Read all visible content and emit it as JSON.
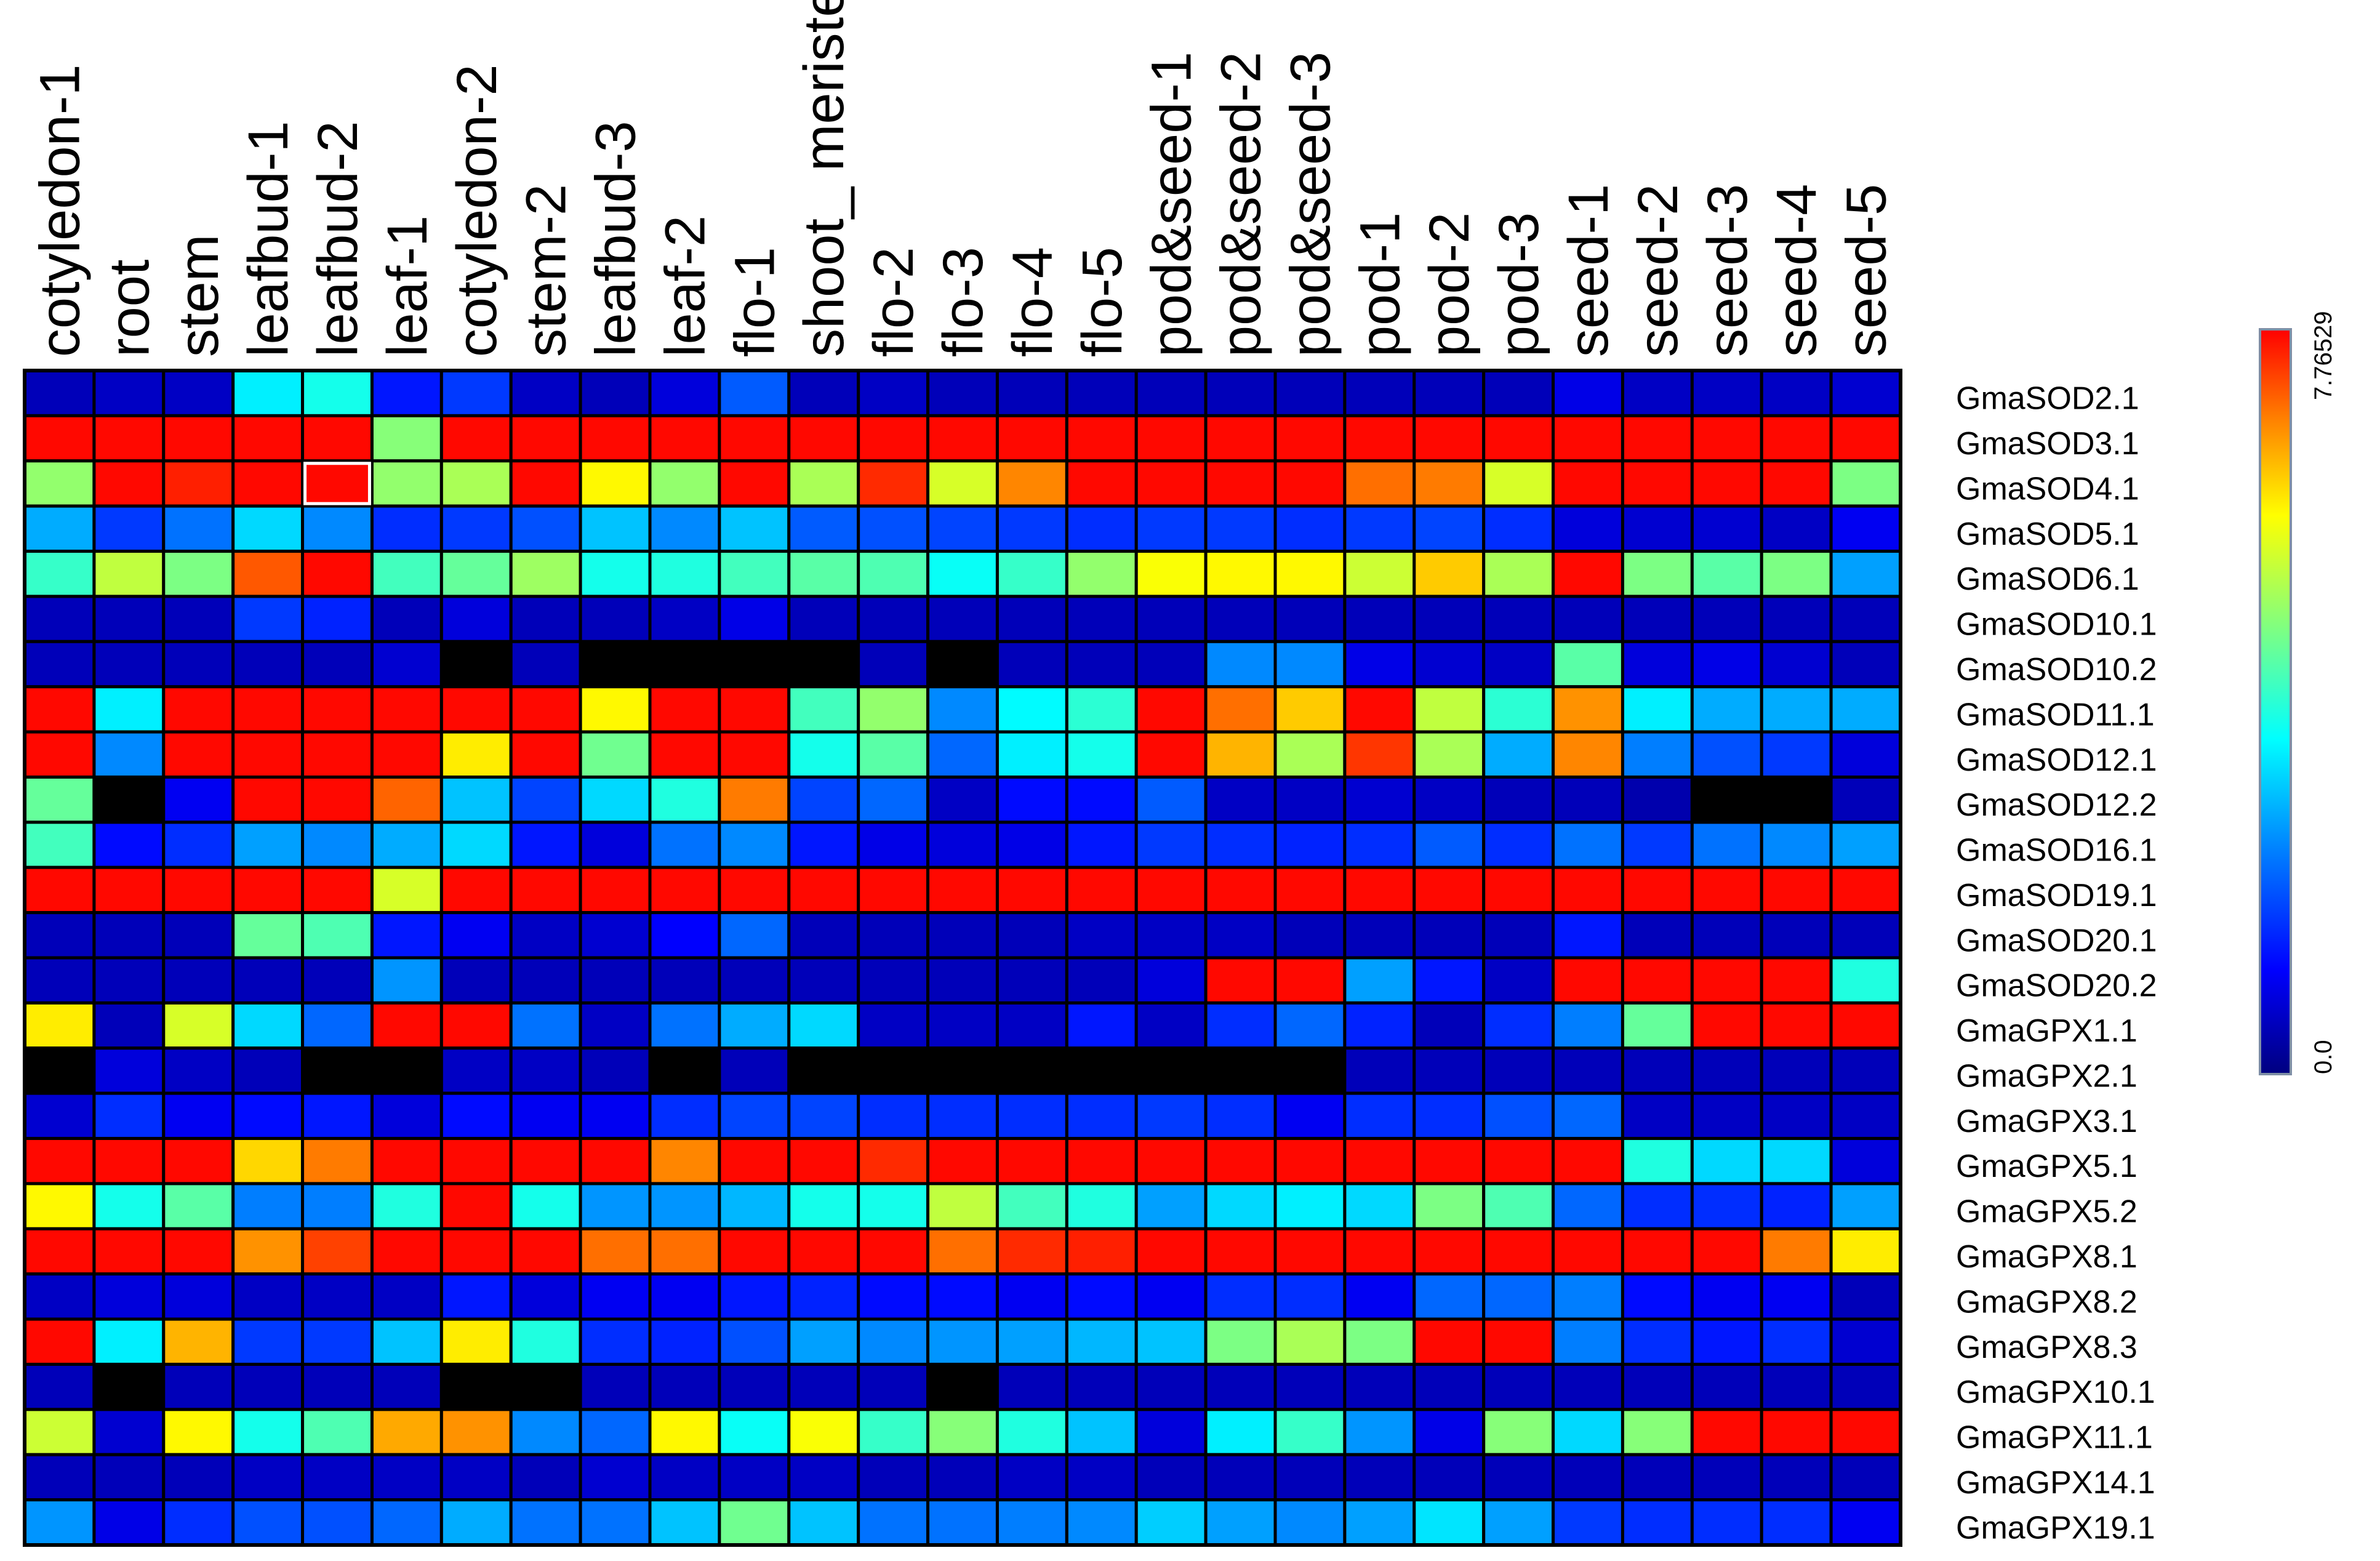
{
  "chart_data": {
    "type": "heatmap",
    "title": "",
    "colormap": [
      "#00007f",
      "#0000ff",
      "#0080ff",
      "#00ffff",
      "#80ff80",
      "#ffff00",
      "#ff8000",
      "#ff0000"
    ],
    "missing_color": "#000000",
    "columns": [
      "cotyledon-1",
      "root",
      "stem",
      "leafbud-1",
      "leafbud-2",
      "leaf-1",
      "cotyledon-2",
      "stem-2",
      "leafbud-3",
      "leaf-2",
      "flo-1",
      "shoot_ meristem",
      "flo-2",
      "flo-3",
      "flo-4",
      "flo-5",
      "pod&seed-1",
      "pod&seed-2",
      "pod&seed-3",
      "pod-1",
      "pod-2",
      "pod-3",
      "seed-1",
      "seed-2",
      "seed-3",
      "seed-4",
      "seed-5"
    ],
    "rows": [
      "GmaSOD2.1",
      "GmaSOD3.1",
      "GmaSOD4.1",
      "GmaSOD5.1",
      "GmaSOD6.1",
      "GmaSOD10.1",
      "GmaSOD10.2",
      "GmaSOD11.1",
      "GmaSOD12.1",
      "GmaSOD12.2",
      "GmaSOD16.1",
      "GmaSOD19.1",
      "GmaSOD20.1",
      "GmaSOD20.2",
      "GmaGPX1.1",
      "GmaGPX2.1",
      "GmaGPX3.1",
      "GmaGPX5.1",
      "GmaGPX5.2",
      "GmaGPX8.1",
      "GmaGPX8.2",
      "GmaGPX8.3",
      "GmaGPX10.1",
      "GmaGPX11.1",
      "GmaGPX14.1",
      "GmaGPX19.1"
    ],
    "values": [
      [
        0.5,
        0.6,
        0.6,
        3.2,
        3.5,
        1.3,
        1.6,
        0.6,
        0.5,
        0.8,
        1.9,
        0.5,
        0.6,
        0.5,
        0.5,
        0.5,
        0.5,
        0.5,
        0.5,
        0.5,
        0.5,
        0.5,
        0.9,
        0.6,
        0.6,
        0.6,
        0.7
      ],
      [
        7.7,
        7.7,
        7.7,
        7.7,
        7.7,
        4.5,
        7.7,
        7.7,
        7.7,
        7.7,
        7.7,
        7.7,
        7.7,
        7.7,
        7.7,
        7.7,
        7.7,
        7.7,
        7.7,
        7.7,
        7.7,
        7.7,
        7.7,
        7.7,
        7.7,
        7.7,
        7.7
      ],
      [
        4.6,
        7.7,
        7.5,
        7.7,
        7.7,
        4.6,
        4.8,
        7.7,
        5.6,
        4.6,
        7.7,
        4.8,
        7.4,
        5.2,
        6.6,
        7.7,
        7.7,
        7.7,
        7.7,
        6.8,
        6.7,
        5.2,
        7.7,
        7.7,
        7.7,
        7.7,
        4.4
      ],
      [
        2.6,
        1.6,
        2.1,
        3.0,
        2.3,
        1.5,
        1.6,
        1.8,
        2.8,
        2.3,
        2.8,
        1.9,
        1.8,
        1.7,
        1.6,
        1.5,
        1.6,
        1.6,
        1.5,
        1.6,
        1.7,
        1.5,
        0.8,
        0.7,
        0.7,
        0.6,
        1.0
      ],
      [
        3.8,
        5.0,
        4.4,
        7.0,
        7.7,
        3.9,
        4.2,
        4.7,
        3.5,
        3.6,
        3.9,
        4.1,
        4.0,
        3.4,
        3.8,
        4.6,
        5.5,
        5.6,
        5.6,
        5.1,
        6.0,
        4.8,
        7.7,
        4.4,
        4.1,
        4.4,
        2.5
      ],
      [
        0.5,
        0.5,
        0.5,
        1.6,
        1.4,
        0.5,
        0.8,
        0.5,
        0.5,
        0.6,
        0.9,
        0.5,
        0.5,
        0.5,
        0.5,
        0.5,
        0.5,
        0.5,
        0.5,
        0.5,
        0.5,
        0.5,
        0.5,
        0.5,
        0.5,
        0.5,
        0.5
      ],
      [
        0.5,
        0.5,
        0.5,
        0.5,
        0.5,
        0.7,
        null,
        0.5,
        null,
        null,
        null,
        null,
        0.5,
        null,
        0.5,
        0.5,
        0.5,
        2.3,
        2.3,
        0.9,
        0.7,
        0.6,
        4.1,
        0.8,
        0.9,
        0.7,
        0.5
      ],
      [
        7.7,
        3.2,
        7.7,
        7.7,
        7.7,
        7.7,
        7.7,
        7.7,
        5.6,
        7.7,
        7.7,
        3.9,
        4.6,
        2.3,
        3.3,
        3.7,
        7.7,
        6.8,
        6.0,
        7.7,
        5.0,
        3.7,
        6.5,
        3.2,
        2.6,
        2.6,
        2.6
      ],
      [
        7.7,
        2.3,
        7.7,
        7.7,
        7.7,
        7.7,
        5.7,
        7.7,
        4.3,
        7.7,
        7.7,
        3.5,
        4.1,
        2.0,
        3.2,
        3.5,
        7.7,
        6.2,
        4.8,
        7.3,
        4.8,
        2.6,
        6.6,
        2.2,
        1.8,
        1.6,
        0.8
      ],
      [
        4.2,
        null,
        1.0,
        7.7,
        7.7,
        6.9,
        2.8,
        1.7,
        3.0,
        3.6,
        6.7,
        1.7,
        2.0,
        0.6,
        1.2,
        1.2,
        1.9,
        0.6,
        0.6,
        0.7,
        0.6,
        0.5,
        0.5,
        0.4,
        null,
        null,
        0.5
      ],
      [
        3.9,
        1.2,
        1.5,
        2.5,
        2.3,
        2.6,
        3.0,
        1.3,
        0.8,
        2.1,
        2.3,
        1.3,
        0.9,
        0.8,
        0.9,
        1.3,
        1.6,
        1.5,
        1.4,
        1.5,
        1.9,
        1.5,
        2.1,
        1.6,
        2.1,
        2.3,
        2.5
      ],
      [
        7.7,
        7.7,
        7.7,
        7.7,
        7.7,
        5.2,
        7.7,
        7.7,
        7.7,
        7.7,
        7.7,
        7.7,
        7.7,
        7.7,
        7.7,
        7.7,
        7.7,
        7.7,
        7.7,
        7.7,
        7.7,
        7.7,
        7.7,
        7.7,
        7.7,
        7.7,
        7.7
      ],
      [
        0.5,
        0.5,
        0.5,
        4.2,
        4.0,
        1.3,
        1.0,
        0.6,
        0.7,
        1.1,
        2.0,
        0.5,
        0.5,
        0.5,
        0.5,
        0.6,
        0.6,
        0.6,
        0.5,
        0.5,
        0.5,
        0.5,
        1.3,
        0.5,
        0.5,
        0.5,
        0.5
      ],
      [
        0.5,
        0.5,
        0.5,
        0.5,
        0.5,
        2.4,
        0.5,
        0.5,
        0.5,
        0.5,
        0.5,
        0.5,
        0.5,
        0.5,
        0.5,
        0.5,
        0.8,
        7.7,
        7.7,
        2.5,
        1.3,
        0.6,
        7.7,
        7.7,
        7.7,
        7.7,
        3.6
      ],
      [
        5.7,
        0.5,
        5.2,
        3.0,
        2.0,
        7.7,
        7.7,
        2.1,
        0.6,
        2.1,
        2.6,
        3.0,
        0.6,
        0.6,
        0.6,
        1.3,
        0.6,
        1.5,
        2.0,
        1.4,
        0.5,
        1.5,
        2.2,
        4.2,
        7.7,
        7.7,
        7.7
      ],
      [
        null,
        0.8,
        0.6,
        0.5,
        null,
        null,
        0.6,
        0.6,
        0.5,
        null,
        0.5,
        null,
        null,
        null,
        null,
        null,
        null,
        null,
        null,
        0.5,
        0.5,
        0.5,
        0.5,
        0.5,
        0.5,
        0.5,
        0.5
      ],
      [
        0.7,
        1.5,
        1.0,
        1.2,
        1.3,
        0.8,
        1.2,
        1.0,
        1.0,
        1.5,
        1.7,
        1.7,
        1.5,
        1.5,
        1.5,
        1.5,
        1.6,
        1.5,
        1.0,
        1.5,
        1.5,
        1.8,
        2.0,
        0.6,
        0.6,
        0.6,
        0.6
      ],
      [
        7.7,
        7.7,
        7.7,
        5.9,
        6.7,
        7.7,
        7.7,
        7.7,
        7.7,
        6.6,
        7.7,
        7.7,
        7.4,
        7.7,
        7.7,
        7.7,
        7.7,
        7.7,
        7.7,
        7.7,
        7.7,
        7.7,
        7.7,
        3.6,
        3.0,
        3.0,
        0.8
      ],
      [
        5.6,
        3.5,
        4.1,
        2.2,
        2.2,
        3.6,
        7.7,
        3.5,
        2.4,
        2.4,
        2.7,
        3.5,
        3.5,
        5.0,
        3.9,
        3.6,
        2.5,
        3.0,
        3.2,
        3.0,
        4.4,
        4.0,
        2.0,
        1.5,
        1.5,
        1.4,
        2.5
      ],
      [
        7.7,
        7.7,
        7.7,
        6.5,
        7.2,
        7.7,
        7.7,
        7.7,
        6.8,
        6.8,
        7.7,
        7.7,
        7.7,
        6.8,
        7.4,
        7.5,
        7.7,
        7.7,
        7.7,
        7.7,
        7.7,
        7.7,
        7.7,
        7.7,
        7.7,
        6.7,
        5.7
      ],
      [
        0.6,
        0.8,
        0.8,
        0.6,
        0.6,
        0.6,
        1.3,
        0.8,
        1.0,
        1.0,
        1.3,
        1.4,
        1.2,
        1.2,
        1.0,
        1.2,
        1.0,
        1.5,
        1.5,
        1.0,
        2.0,
        2.0,
        2.2,
        1.2,
        1.0,
        1.0,
        0.5
      ],
      [
        7.7,
        3.2,
        6.2,
        1.6,
        1.6,
        2.8,
        5.7,
        3.6,
        1.5,
        1.4,
        1.8,
        2.5,
        2.3,
        2.4,
        2.5,
        2.7,
        2.8,
        4.4,
        4.8,
        4.4,
        7.7,
        7.7,
        2.2,
        1.5,
        1.3,
        1.5,
        0.7
      ],
      [
        0.5,
        null,
        0.5,
        0.5,
        0.5,
        0.5,
        null,
        null,
        0.5,
        0.5,
        0.5,
        0.5,
        0.5,
        null,
        0.5,
        0.5,
        0.5,
        0.5,
        0.5,
        0.5,
        0.5,
        0.5,
        0.5,
        0.5,
        0.5,
        0.5,
        0.5
      ],
      [
        5.1,
        0.7,
        5.6,
        3.5,
        4.0,
        6.3,
        6.5,
        2.3,
        2.0,
        5.6,
        3.4,
        5.5,
        3.8,
        4.5,
        3.6,
        2.8,
        0.8,
        3.2,
        3.8,
        2.4,
        0.9,
        4.5,
        3.0,
        4.5,
        7.7,
        7.7,
        7.7
      ],
      [
        0.5,
        0.5,
        0.5,
        0.6,
        0.6,
        0.6,
        0.6,
        0.5,
        0.7,
        0.6,
        0.6,
        0.6,
        0.5,
        0.5,
        0.6,
        0.6,
        0.5,
        0.5,
        0.5,
        0.5,
        0.5,
        0.5,
        0.5,
        0.5,
        0.5,
        0.5,
        0.5
      ],
      [
        2.4,
        0.9,
        1.5,
        1.8,
        1.8,
        2.0,
        2.6,
        2.1,
        2.1,
        2.8,
        4.3,
        2.8,
        2.1,
        2.1,
        2.2,
        2.3,
        2.9,
        2.5,
        2.3,
        2.5,
        3.1,
        2.5,
        1.6,
        1.5,
        1.5,
        1.5,
        1.0
      ]
    ],
    "highlight": {
      "row": "GmaSOD4.1",
      "column": "leafbud-2"
    },
    "scale": {
      "min": 0.0,
      "max": 7.76529,
      "min_label": "0.0",
      "max_label": "7.76529"
    }
  }
}
